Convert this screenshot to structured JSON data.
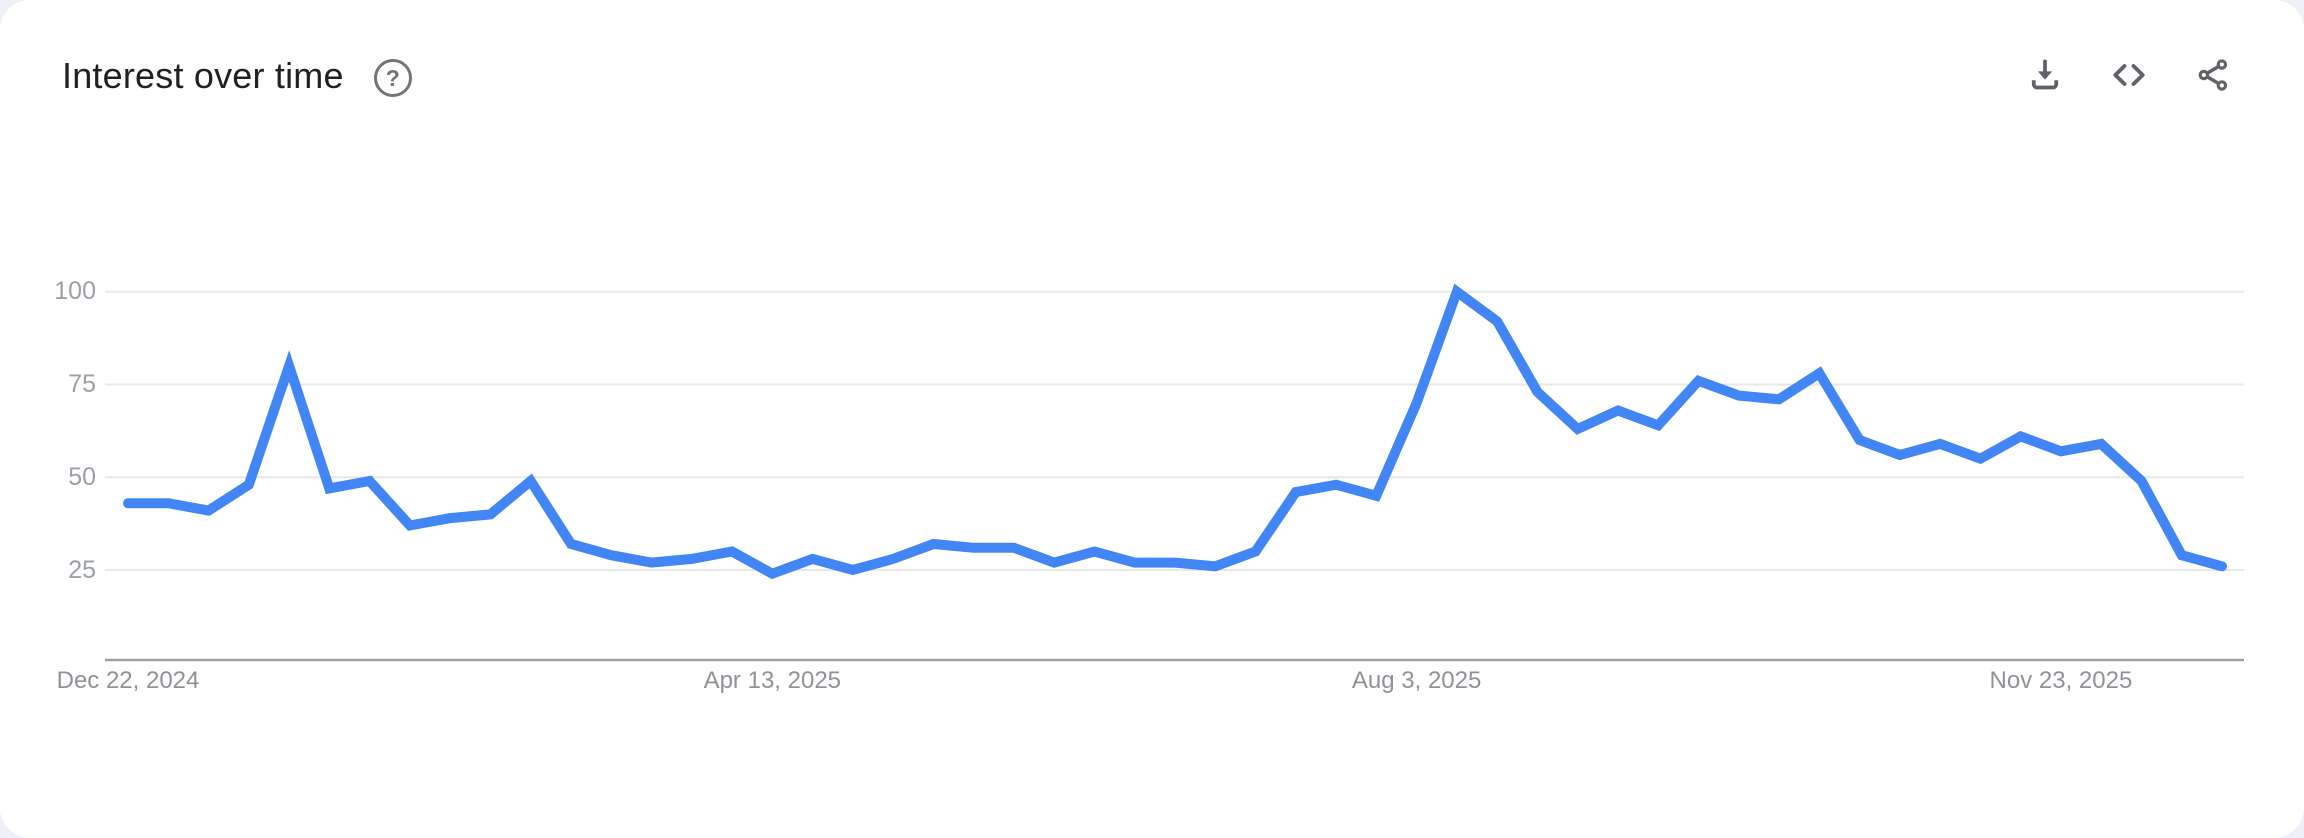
{
  "page": {
    "background": "#edf0f7",
    "card_background": "#ffffff"
  },
  "header": {
    "title": "Interest over time",
    "help_glyph": "?"
  },
  "toolbar": {
    "buttons": [
      {
        "name": "download",
        "icon": "download-icon"
      },
      {
        "name": "embed",
        "icon": "code-icon"
      },
      {
        "name": "share",
        "icon": "share-icon"
      }
    ]
  },
  "colors": {
    "line": "#4285f4",
    "gridline": "#e8e8e8",
    "axis_line": "#9aa0a6",
    "y_tick_text": "#9aa0a6",
    "x_tick_text": "#8f9296",
    "icon": "#5f6368",
    "title_text": "#202124"
  },
  "chart_data": {
    "type": "line",
    "title": "Interest over time",
    "xlabel": "",
    "ylabel": "",
    "ylim": [
      0,
      100
    ],
    "y_ticks": [
      25,
      50,
      75,
      100
    ],
    "grid": "horizontal",
    "legend": "none",
    "x": [
      "Dec 22, 2024",
      "Dec 29, 2024",
      "Jan 5, 2025",
      "Jan 12, 2025",
      "Jan 19, 2025",
      "Jan 26, 2025",
      "Feb 2, 2025",
      "Feb 9, 2025",
      "Feb 16, 2025",
      "Feb 23, 2025",
      "Mar 2, 2025",
      "Mar 9, 2025",
      "Mar 16, 2025",
      "Mar 23, 2025",
      "Mar 30, 2025",
      "Apr 6, 2025",
      "Apr 13, 2025",
      "Apr 20, 2025",
      "Apr 27, 2025",
      "May 4, 2025",
      "May 11, 2025",
      "May 18, 2025",
      "May 25, 2025",
      "Jun 1, 2025",
      "Jun 8, 2025",
      "Jun 15, 2025",
      "Jun 22, 2025",
      "Jun 29, 2025",
      "Jul 6, 2025",
      "Jul 13, 2025",
      "Jul 20, 2025",
      "Jul 27, 2025",
      "Aug 3, 2025",
      "Aug 10, 2025",
      "Aug 17, 2025",
      "Aug 24, 2025",
      "Aug 31, 2025",
      "Sep 7, 2025",
      "Sep 14, 2025",
      "Sep 21, 2025",
      "Sep 28, 2025",
      "Oct 5, 2025",
      "Oct 12, 2025",
      "Oct 19, 2025",
      "Oct 26, 2025",
      "Nov 2, 2025",
      "Nov 9, 2025",
      "Nov 16, 2025",
      "Nov 23, 2025",
      "Nov 30, 2025",
      "Dec 7, 2025",
      "Dec 14, 2025",
      "Dec 21, 2025"
    ],
    "values": [
      43,
      43,
      41,
      48,
      80,
      47,
      49,
      37,
      39,
      40,
      49,
      32,
      29,
      27,
      28,
      30,
      24,
      28,
      25,
      28,
      32,
      31,
      31,
      27,
      30,
      27,
      27,
      26,
      30,
      46,
      48,
      45,
      70,
      100,
      92,
      73,
      63,
      68,
      64,
      76,
      72,
      71,
      78,
      60,
      56,
      59,
      55,
      61,
      57,
      59,
      49,
      29,
      26
    ],
    "x_tick_marks": [
      {
        "index": 0,
        "label": "Dec 22, 2024"
      },
      {
        "index": 16,
        "label": "Apr 13, 2025"
      },
      {
        "index": 32,
        "label": "Aug 3, 2025"
      },
      {
        "index": 48,
        "label": "Nov 23, 2025"
      }
    ]
  }
}
